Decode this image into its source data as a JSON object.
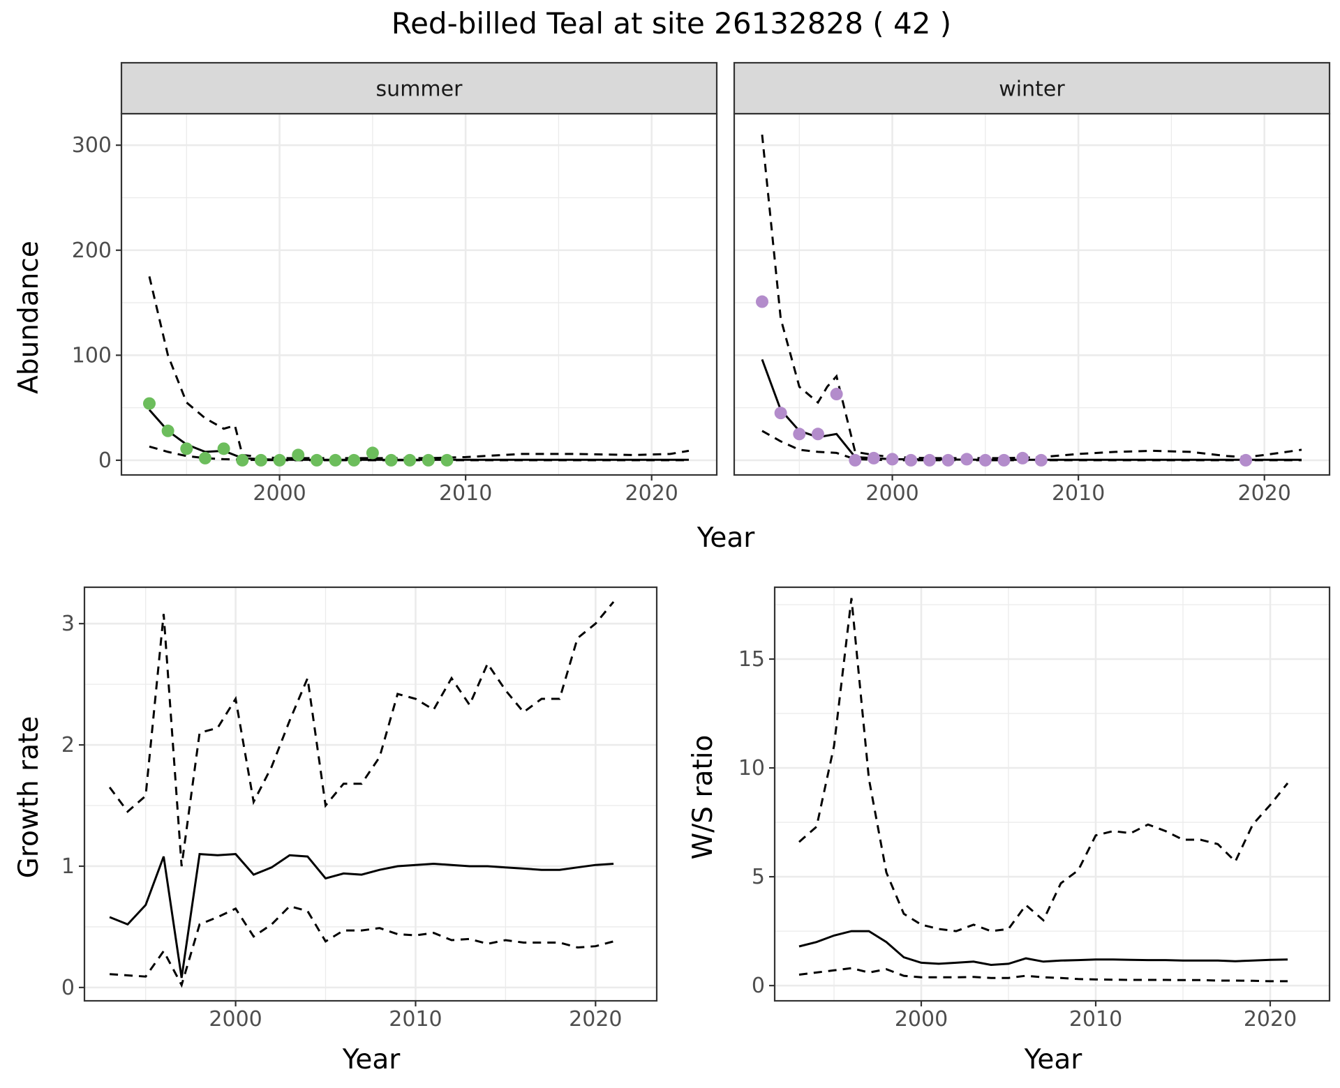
{
  "title": "Red-billed Teal at site 26132828 ( 42 )",
  "colors": {
    "summer_points": "#6cbd5c",
    "winter_points": "#b38ccb",
    "strip_bg": "#d9d9d9"
  },
  "chart_data": [
    {
      "id": "abundance-summer",
      "type": "line",
      "strip": "summer",
      "xlabel": "Year",
      "ylabel": "Abundance",
      "xlim": [
        1991.5,
        2023.5
      ],
      "ylim": [
        -14,
        330
      ],
      "xticks": [
        2000,
        2010,
        2020
      ],
      "yticks": [
        0,
        100,
        200,
        300
      ],
      "series": [
        {
          "kind": "estimate",
          "x": [
            1993,
            1994,
            1995,
            1996,
            1997,
            1998,
            1999,
            2000,
            2002,
            2004,
            2006,
            2008,
            2010,
            2013,
            2016,
            2019,
            2022
          ],
          "y": [
            48,
            28,
            15,
            8,
            9,
            2,
            1,
            0.5,
            0.5,
            0.5,
            0.5,
            0.5,
            0.5,
            0.5,
            0.5,
            0.5,
            0.5
          ]
        },
        {
          "kind": "upper",
          "x": [
            1993,
            1994,
            1995,
            1996,
            1997,
            1997.6,
            1998,
            1999,
            2000,
            2002,
            2004,
            2006,
            2008,
            2010,
            2013,
            2016,
            2019,
            2021,
            2022
          ],
          "y": [
            175,
            100,
            55,
            40,
            30,
            33,
            5,
            3,
            2,
            2,
            2,
            2,
            2,
            3,
            6,
            6,
            5,
            6,
            9
          ]
        },
        {
          "kind": "lower",
          "x": [
            1993,
            1994,
            1995,
            1996,
            1997,
            1998,
            2000,
            2005,
            2010,
            2015,
            2022
          ],
          "y": [
            13,
            8,
            4,
            2,
            1,
            0.5,
            0,
            0,
            0,
            0,
            0
          ]
        },
        {
          "kind": "observed",
          "x": [
            1993,
            1994,
            1995,
            1996,
            1997,
            1998,
            1999,
            2000,
            2001,
            2002,
            2003,
            2004,
            2005,
            2006,
            2007,
            2008,
            2009
          ],
          "y": [
            54,
            28,
            11,
            2,
            11,
            0,
            0,
            0,
            5,
            0,
            0,
            0,
            7,
            0,
            0,
            0,
            0
          ]
        }
      ]
    },
    {
      "id": "abundance-winter",
      "type": "line",
      "strip": "winter",
      "xlabel": "Year",
      "ylabel": "Abundance",
      "xlim": [
        1991.5,
        2023.5
      ],
      "ylim": [
        -14,
        330
      ],
      "xticks": [
        2000,
        2010,
        2020
      ],
      "yticks": [
        0,
        100,
        200,
        300
      ],
      "series": [
        {
          "kind": "estimate",
          "x": [
            1993,
            1994,
            1995,
            1996,
            1997,
            1998,
            2000,
            2005,
            2010,
            2015,
            2020,
            2022
          ],
          "y": [
            96,
            48,
            28,
            22,
            25,
            3,
            1,
            0.5,
            0.5,
            0.5,
            0.5,
            0.5
          ]
        },
        {
          "kind": "upper",
          "x": [
            1993,
            1994,
            1995,
            1996,
            1996.5,
            1997,
            1998,
            1999,
            2000,
            2002,
            2004,
            2006,
            2008,
            2010,
            2012,
            2014,
            2016,
            2018,
            2019,
            2020,
            2022
          ],
          "y": [
            310,
            135,
            70,
            55,
            70,
            80,
            8,
            5,
            3,
            2,
            2,
            2,
            3,
            6,
            8,
            9,
            8,
            4,
            3,
            5,
            10
          ]
        },
        {
          "kind": "lower",
          "x": [
            1993,
            1994,
            1995,
            1996,
            1997,
            1998,
            2000,
            2005,
            2010,
            2015,
            2022
          ],
          "y": [
            28,
            18,
            10,
            8,
            7,
            1,
            0,
            0,
            0,
            0,
            0
          ]
        },
        {
          "kind": "observed",
          "x": [
            1993,
            1994,
            1995,
            1996,
            1997,
            1998,
            1999,
            2000,
            2001,
            2002,
            2003,
            2004,
            2005,
            2006,
            2007,
            2008,
            2019
          ],
          "y": [
            151,
            45,
            25,
            25,
            63,
            0,
            2,
            1,
            0,
            0,
            0,
            1,
            0,
            0,
            2,
            0,
            0
          ]
        }
      ]
    },
    {
      "id": "growth-rate",
      "type": "line",
      "xlabel": "Year",
      "ylabel": "Growth rate",
      "xlim": [
        1991.6,
        2023.4
      ],
      "ylim": [
        -0.11,
        3.3
      ],
      "xticks": [
        2000,
        2010,
        2020
      ],
      "yticks": [
        0,
        1,
        2,
        3
      ],
      "series": [
        {
          "kind": "estimate",
          "x": [
            1993,
            1994,
            1995,
            1996,
            1997,
            1998,
            1999,
            2000,
            2001,
            2002,
            2003,
            2004,
            2005,
            2006,
            2007,
            2008,
            2009,
            2010,
            2011,
            2012,
            2013,
            2014,
            2015,
            2016,
            2017,
            2018,
            2019,
            2020,
            2021
          ],
          "y": [
            0.58,
            0.52,
            0.68,
            1.08,
            0.08,
            1.1,
            1.09,
            1.1,
            0.93,
            0.99,
            1.09,
            1.08,
            0.9,
            0.94,
            0.93,
            0.97,
            1.0,
            1.01,
            1.02,
            1.01,
            1.0,
            1.0,
            0.99,
            0.98,
            0.97,
            0.97,
            0.99,
            1.01,
            1.02
          ]
        },
        {
          "kind": "upper",
          "x": [
            1993,
            1994,
            1995,
            1996,
            1997,
            1998,
            1999,
            2000,
            2001,
            2002,
            2003,
            2004,
            2005,
            2006,
            2007,
            2008,
            2009,
            2010,
            2011,
            2012,
            2013,
            2014,
            2015,
            2016,
            2017,
            2018,
            2019,
            2020,
            2021
          ],
          "y": [
            1.65,
            1.45,
            1.58,
            3.08,
            1.0,
            2.1,
            2.14,
            2.38,
            1.53,
            1.82,
            2.2,
            2.55,
            1.5,
            1.68,
            1.68,
            1.9,
            2.42,
            2.38,
            2.29,
            2.55,
            2.33,
            2.67,
            2.45,
            2.27,
            2.38,
            2.38,
            2.88,
            3.0,
            3.18
          ]
        },
        {
          "kind": "lower",
          "x": [
            1993,
            1994,
            1995,
            1996,
            1997,
            1998,
            1999,
            2000,
            2001,
            2002,
            2003,
            2004,
            2005,
            2006,
            2007,
            2008,
            2009,
            2010,
            2011,
            2012,
            2013,
            2014,
            2015,
            2016,
            2017,
            2018,
            2019,
            2020,
            2021
          ],
          "y": [
            0.11,
            0.1,
            0.09,
            0.3,
            0.02,
            0.52,
            0.58,
            0.65,
            0.42,
            0.52,
            0.67,
            0.63,
            0.38,
            0.47,
            0.47,
            0.49,
            0.44,
            0.43,
            0.45,
            0.39,
            0.4,
            0.36,
            0.39,
            0.37,
            0.37,
            0.37,
            0.33,
            0.34,
            0.38
          ]
        }
      ]
    },
    {
      "id": "ws-ratio",
      "type": "line",
      "xlabel": "Year",
      "ylabel": "W/S ratio",
      "xlim": [
        1991.6,
        2023.4
      ],
      "ylim": [
        -0.7,
        18.3
      ],
      "xticks": [
        2000,
        2010,
        2020
      ],
      "yticks": [
        0,
        5,
        10,
        15
      ],
      "series": [
        {
          "kind": "estimate",
          "x": [
            1993,
            1994,
            1995,
            1996,
            1997,
            1998,
            1999,
            2000,
            2001,
            2002,
            2003,
            2004,
            2005,
            2006,
            2007,
            2008,
            2009,
            2010,
            2011,
            2012,
            2013,
            2014,
            2015,
            2016,
            2017,
            2018,
            2019,
            2020,
            2021
          ],
          "y": [
            1.8,
            2.0,
            2.3,
            2.5,
            2.5,
            2.0,
            1.3,
            1.05,
            1.0,
            1.05,
            1.1,
            0.95,
            1.0,
            1.25,
            1.1,
            1.15,
            1.17,
            1.2,
            1.2,
            1.18,
            1.17,
            1.17,
            1.15,
            1.15,
            1.15,
            1.12,
            1.15,
            1.18,
            1.2
          ]
        },
        {
          "kind": "upper",
          "x": [
            1993,
            1994,
            1995,
            1996,
            1997,
            1998,
            1999,
            2000,
            2001,
            2002,
            2003,
            2004,
            2005,
            2006,
            2007,
            2008,
            2009,
            2010,
            2011,
            2012,
            2013,
            2014,
            2015,
            2016,
            2017,
            2018,
            2019,
            2020,
            2021
          ],
          "y": [
            6.6,
            7.3,
            11.0,
            17.8,
            9.5,
            5.2,
            3.3,
            2.8,
            2.6,
            2.5,
            2.8,
            2.5,
            2.6,
            3.7,
            3.0,
            4.7,
            5.3,
            6.9,
            7.1,
            7.0,
            7.4,
            7.1,
            6.7,
            6.7,
            6.5,
            5.7,
            7.4,
            8.3,
            9.3
          ]
        },
        {
          "kind": "lower",
          "x": [
            1993,
            1994,
            1995,
            1996,
            1997,
            1998,
            1999,
            2000,
            2001,
            2002,
            2003,
            2004,
            2005,
            2006,
            2007,
            2008,
            2009,
            2010,
            2011,
            2012,
            2013,
            2014,
            2015,
            2016,
            2017,
            2018,
            2019,
            2020,
            2021
          ],
          "y": [
            0.5,
            0.6,
            0.7,
            0.8,
            0.6,
            0.75,
            0.45,
            0.38,
            0.38,
            0.38,
            0.4,
            0.35,
            0.35,
            0.45,
            0.38,
            0.35,
            0.3,
            0.28,
            0.27,
            0.26,
            0.26,
            0.26,
            0.25,
            0.25,
            0.23,
            0.23,
            0.22,
            0.2,
            0.2
          ]
        }
      ]
    }
  ]
}
